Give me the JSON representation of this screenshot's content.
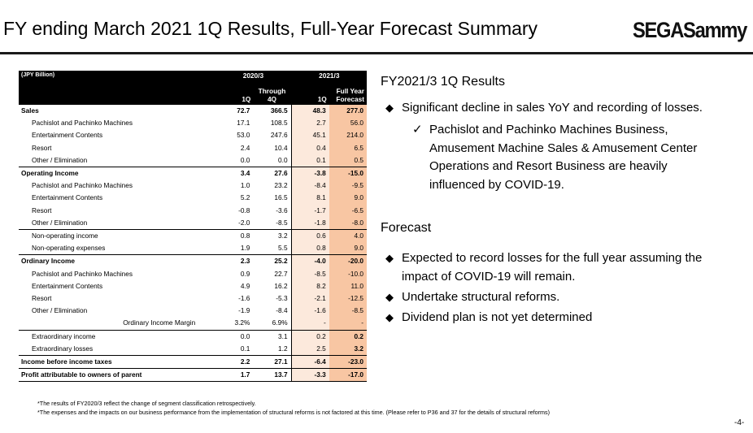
{
  "header": {
    "title": "FY ending March 2021 1Q Results, Full-Year Forecast Summary",
    "logo_text": "SEGASammy",
    "page_number": "-4-"
  },
  "table": {
    "unit_label": "(JPY Billion)",
    "col_group_2020": "2020/3",
    "col_group_2021": "2021/3",
    "col_1q_a": "1Q",
    "col_through_4q": "Through\n4Q",
    "col_through_4q_l1": "Through",
    "col_through_4q_l2": "4Q",
    "col_1q_b": "1Q",
    "col_fy_forecast_l1": "Full Year",
    "col_fy_forecast_l2": "Forecast",
    "rows": [
      {
        "label": "Sales",
        "v": [
          "72.7",
          "366.5",
          "48.3",
          "277.0"
        ]
      },
      {
        "label": "Pachislot and Pachinko Machines",
        "v": [
          "17.1",
          "108.5",
          "2.7",
          "56.0"
        ]
      },
      {
        "label": "Entertainment Contents",
        "v": [
          "53.0",
          "247.6",
          "45.1",
          "214.0"
        ]
      },
      {
        "label": "Resort",
        "v": [
          "2.4",
          "10.4",
          "0.4",
          "6.5"
        ]
      },
      {
        "label": "Other / Elimination",
        "v": [
          "0.0",
          "0.0",
          "0.1",
          "0.5"
        ]
      },
      {
        "label": "Operating Income",
        "v": [
          "3.4",
          "27.6",
          "-3.8",
          "-15.0"
        ]
      },
      {
        "label": "Pachislot and Pachinko Machines",
        "v": [
          "1.0",
          "23.2",
          "-8.4",
          "-9.5"
        ]
      },
      {
        "label": "Entertainment Contents",
        "v": [
          "5.2",
          "16.5",
          "8.1",
          "9.0"
        ]
      },
      {
        "label": "Resort",
        "v": [
          "-0.8",
          "-3.6",
          "-1.7",
          "-6.5"
        ]
      },
      {
        "label": "Other / Elimination",
        "v": [
          "-2.0",
          "-8.5",
          "-1.8",
          "-8.0"
        ]
      },
      {
        "label": "Non-operating income",
        "v": [
          "0.8",
          "3.2",
          "0.6",
          "4.0"
        ]
      },
      {
        "label": "Non-operating expenses",
        "v": [
          "1.9",
          "5.5",
          "0.8",
          "9.0"
        ]
      },
      {
        "label": "Ordinary Income",
        "v": [
          "2.3",
          "25.2",
          "-4.0",
          "-20.0"
        ]
      },
      {
        "label": "Pachislot and Pachinko Machines",
        "v": [
          "0.9",
          "22.7",
          "-8.5",
          "-10.0"
        ]
      },
      {
        "label": "Entertainment Contents",
        "v": [
          "4.9",
          "16.2",
          "8.2",
          "11.0"
        ]
      },
      {
        "label": "Resort",
        "v": [
          "-1.6",
          "-5.3",
          "-2.1",
          "-12.5"
        ]
      },
      {
        "label": "Other / Elimination",
        "v": [
          "-1.9",
          "-8.4",
          "-1.6",
          "-8.5"
        ]
      },
      {
        "label": "Ordinary Income Margin",
        "v": [
          "3.2%",
          "6.9%",
          "-",
          "-"
        ]
      },
      {
        "label": "Extraordinary income",
        "v": [
          "0.0",
          "3.1",
          "0.2",
          "0.2"
        ]
      },
      {
        "label": "Extraordinary losses",
        "v": [
          "0.1",
          "1.2",
          "2.5",
          "3.2"
        ]
      },
      {
        "label": "Income before income taxes",
        "v": [
          "2.2",
          "27.1",
          "-6.4",
          "-23.0"
        ]
      },
      {
        "label": "Profit attributable to owners of parent",
        "v": [
          "1.7",
          "13.7",
          "-3.3",
          "-17.0"
        ]
      }
    ]
  },
  "results": {
    "title": "FY2021/3 1Q Results",
    "bullet1": "Significant decline in sales YoY and recording of losses.",
    "check1": "Pachislot and Pachinko Machines Business, Amusement Machine Sales & Amusement Center Operations and Resort Business are heavily influenced by COVID-19."
  },
  "forecast": {
    "title": "Forecast",
    "bullet1": "Expected to record losses for the full year assuming the impact of COVID-19 will remain.",
    "bullet2": "Undertake structural reforms.",
    "bullet3": "Dividend plan is not yet determined"
  },
  "footnotes": {
    "note1": "*The results of FY2020/3 reflect the change of segment classification retrospectively.",
    "note2": "*The expenses and the impacts on our business performance from the implementation of structural reforms is not factored at this time. (Please refer to P36 and 37 for the details of structural reforms)"
  },
  "icons": {
    "bullet": "diamond-bullet-icon",
    "check": "checkmark-icon"
  },
  "colors": {
    "forecast_col_light": "#fce9dc",
    "forecast_col_dark": "#f8c6a3",
    "header_bg": "#000000"
  }
}
